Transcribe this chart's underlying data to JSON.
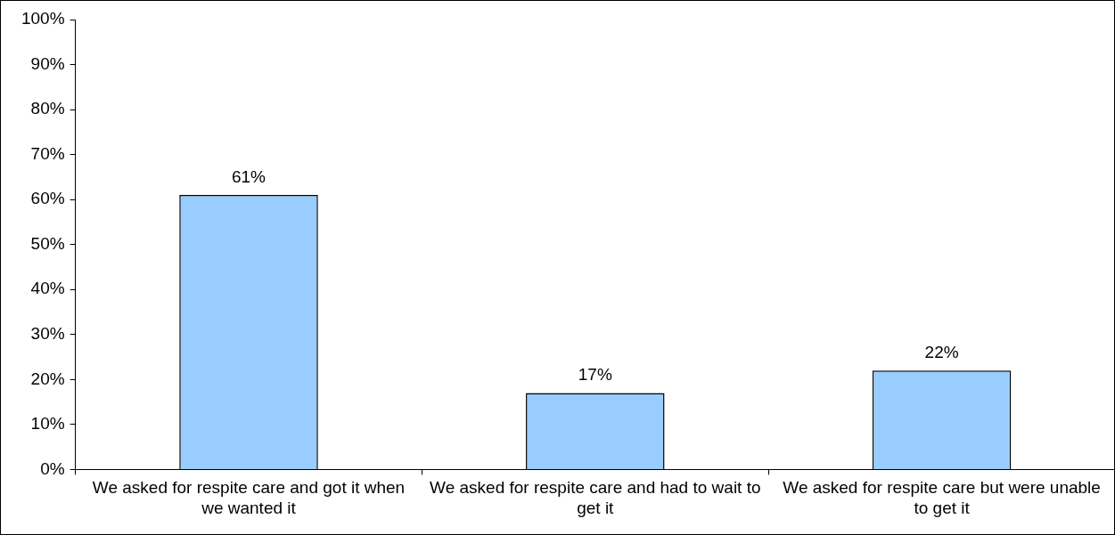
{
  "chart_data": {
    "type": "bar",
    "categories": [
      "We asked for respite care and got it when we wanted it",
      "We asked for respite care and had to wait to get it",
      "We asked for respite care but were unable to get it"
    ],
    "values": [
      61,
      17,
      22
    ],
    "color": "#99ccff",
    "value_labels": [
      "61%",
      "17%",
      "22%"
    ],
    "ylim": [
      0,
      100
    ],
    "yticks": [
      {
        "value": 0,
        "label": "0%"
      },
      {
        "value": 10,
        "label": "10%"
      },
      {
        "value": 20,
        "label": "20%"
      },
      {
        "value": 30,
        "label": "30%"
      },
      {
        "value": 40,
        "label": "40%"
      },
      {
        "value": 50,
        "label": "50%"
      },
      {
        "value": 60,
        "label": "60%"
      },
      {
        "value": 70,
        "label": "70%"
      },
      {
        "value": 80,
        "label": "80%"
      },
      {
        "value": 90,
        "label": "90%"
      },
      {
        "value": 100,
        "label": "100%"
      }
    ],
    "grid": false,
    "legend": false
  }
}
